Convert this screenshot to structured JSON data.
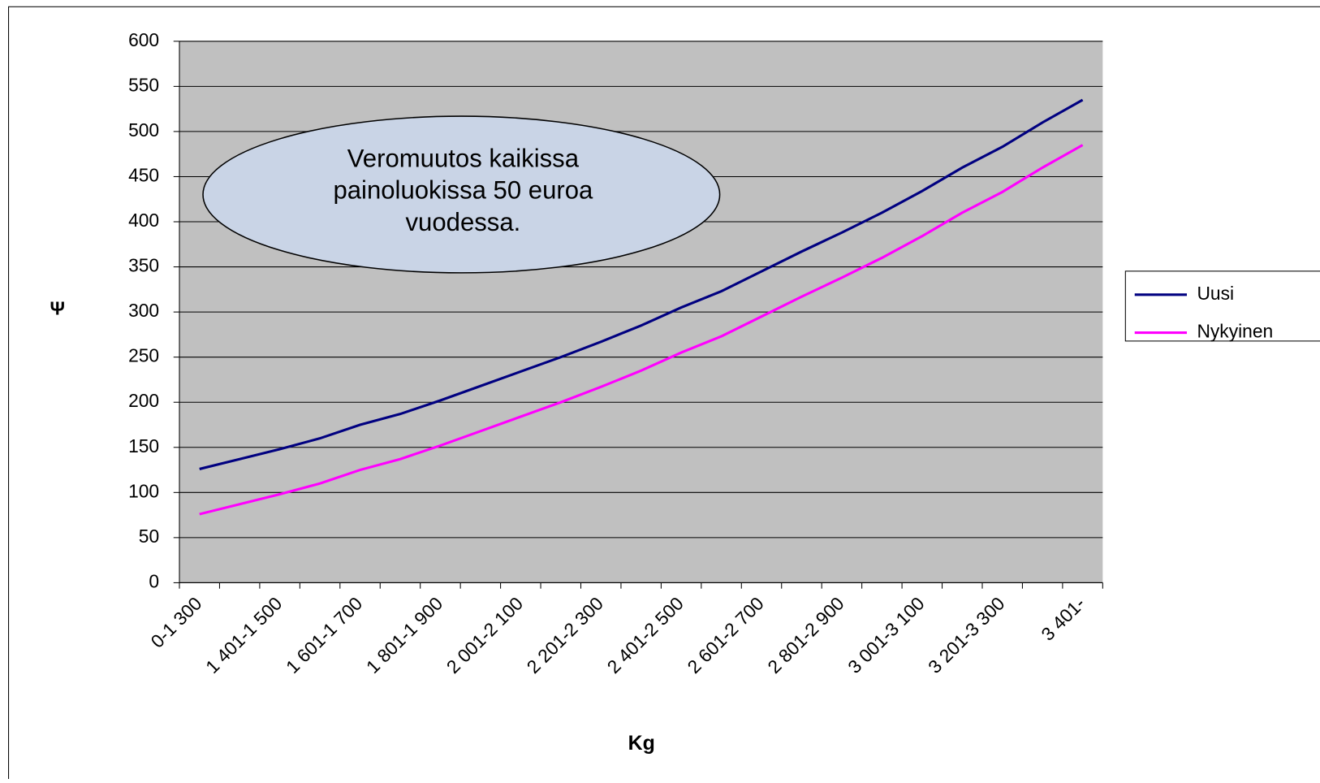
{
  "chart_data": {
    "type": "line",
    "x_label": "Kg",
    "y_label": "Ψ",
    "annotation": "Veromuutos kaikissa painoluokissa 50 euroa vuodessa.",
    "categories": [
      "0-1 300",
      null,
      "1 401-1 500",
      null,
      "1 601-1 700",
      null,
      "1 801-1 900",
      null,
      "2 001-2 100",
      null,
      "2 201-2 300",
      null,
      "2 401-2 500",
      null,
      "2 601-2 700",
      null,
      "2 801-2 900",
      null,
      "3 001-3 100",
      null,
      "3 201-3 300",
      null,
      "3 401-"
    ],
    "series": [
      {
        "name": "Uusi",
        "color": "#000080",
        "values": [
          126,
          137,
          148,
          160,
          175,
          187,
          202,
          218,
          234,
          250,
          267,
          285,
          305,
          323,
          345,
          367,
          388,
          410,
          434,
          460,
          483,
          510,
          535
        ]
      },
      {
        "name": "Nykyinen",
        "color": "#ff00ff",
        "values": [
          76,
          87,
          98,
          110,
          125,
          137,
          152,
          168,
          184,
          200,
          217,
          235,
          255,
          273,
          295,
          317,
          338,
          360,
          384,
          410,
          433,
          460,
          485
        ]
      }
    ],
    "ylim": [
      0,
      600
    ],
    "yticks": [
      0,
      50,
      100,
      150,
      200,
      250,
      300,
      350,
      400,
      450,
      500,
      550,
      600
    ],
    "grid": true,
    "legend": "right"
  }
}
